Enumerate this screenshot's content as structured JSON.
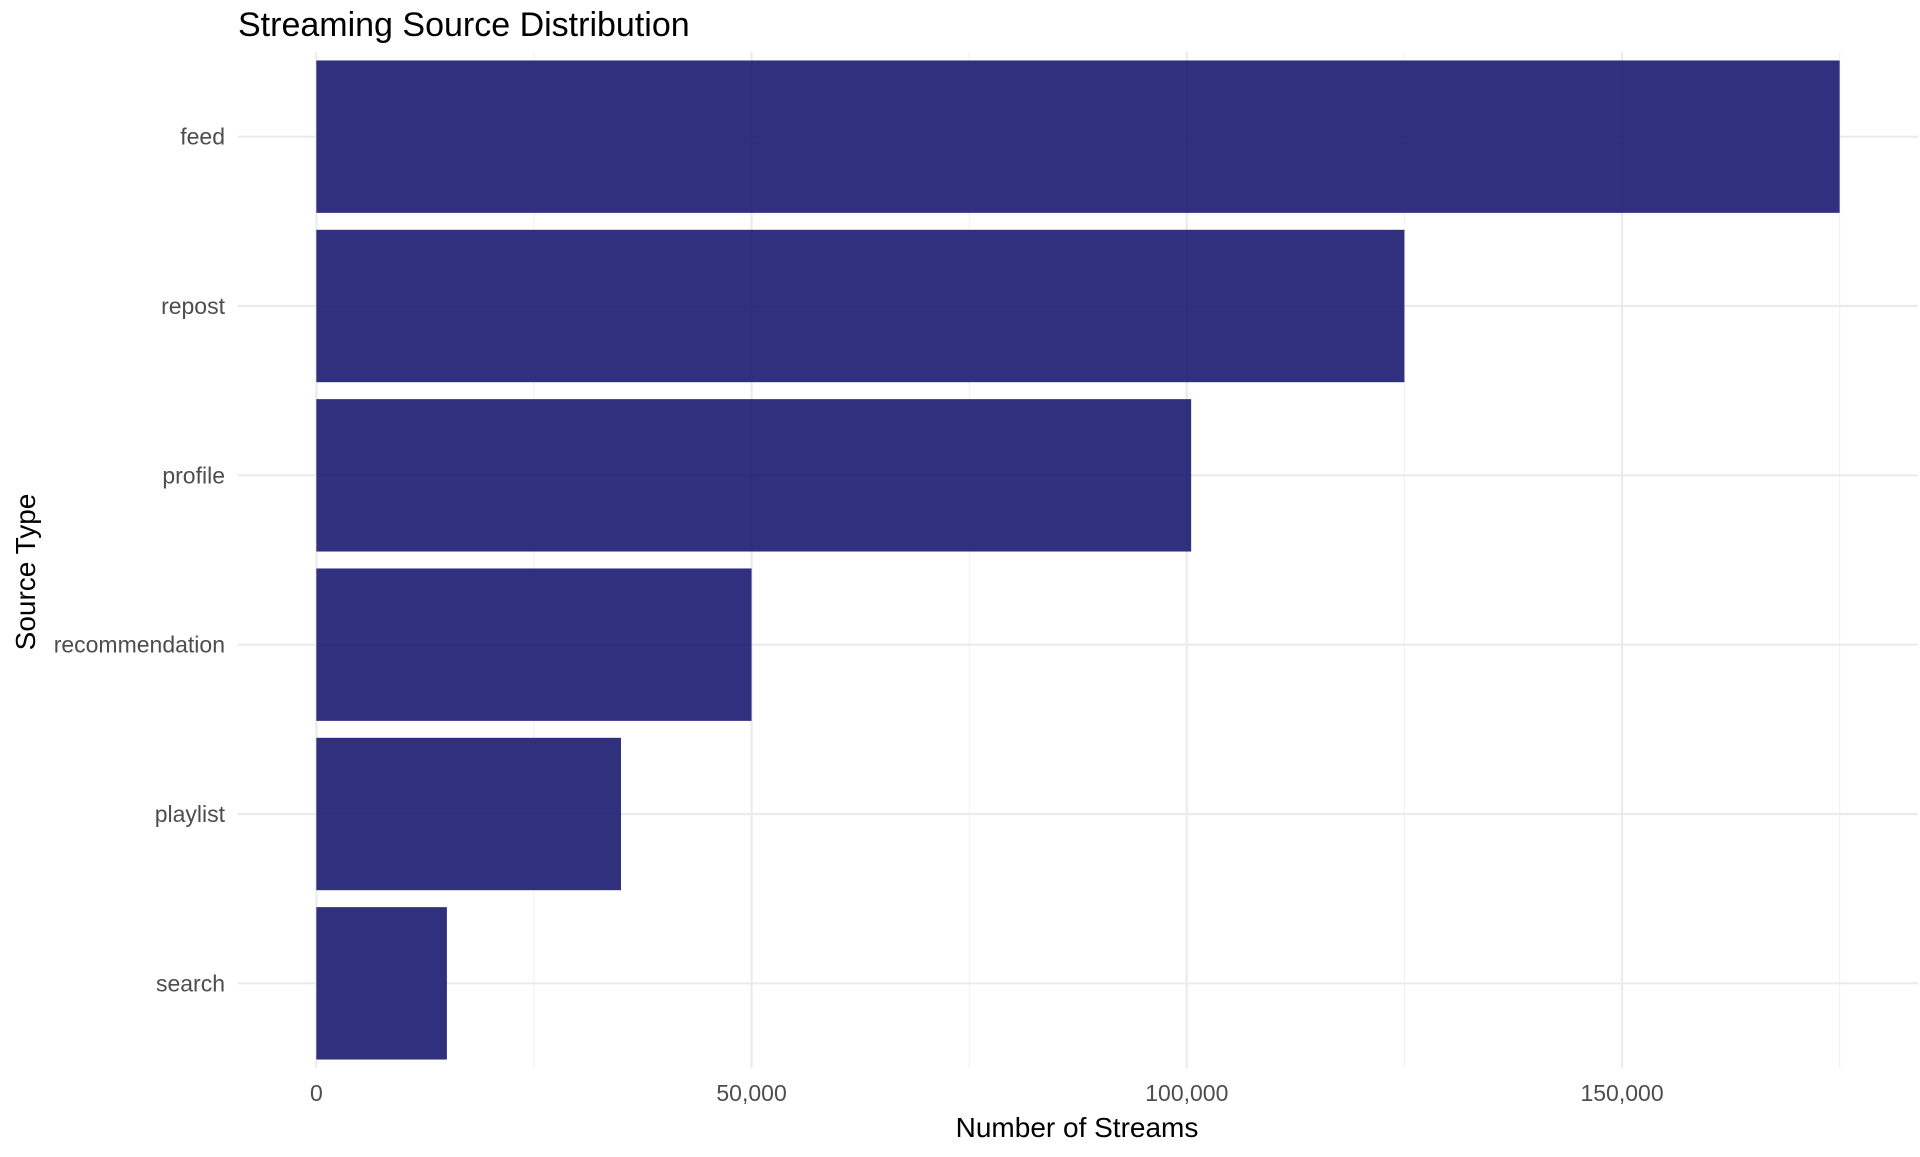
{
  "chart_data": {
    "type": "bar",
    "orientation": "horizontal",
    "title": "Streaming Source Distribution",
    "xlabel": "Number of Streams",
    "ylabel": "Source Type",
    "categories": [
      "feed",
      "repost",
      "profile",
      "recommendation",
      "playlist",
      "search"
    ],
    "values": [
      175000,
      125000,
      100500,
      50000,
      35000,
      15000
    ],
    "xlim": [
      -9000,
      184000
    ],
    "x_ticks": [
      0,
      50000,
      100000,
      150000
    ],
    "x_tick_labels": [
      "0",
      "50,000",
      "100,000",
      "150,000"
    ],
    "x_minor_ticks": [
      25000,
      75000,
      125000,
      175000
    ],
    "grid": true,
    "legend": "none",
    "bar_color": "#191970",
    "bar_opacity": 0.9
  }
}
